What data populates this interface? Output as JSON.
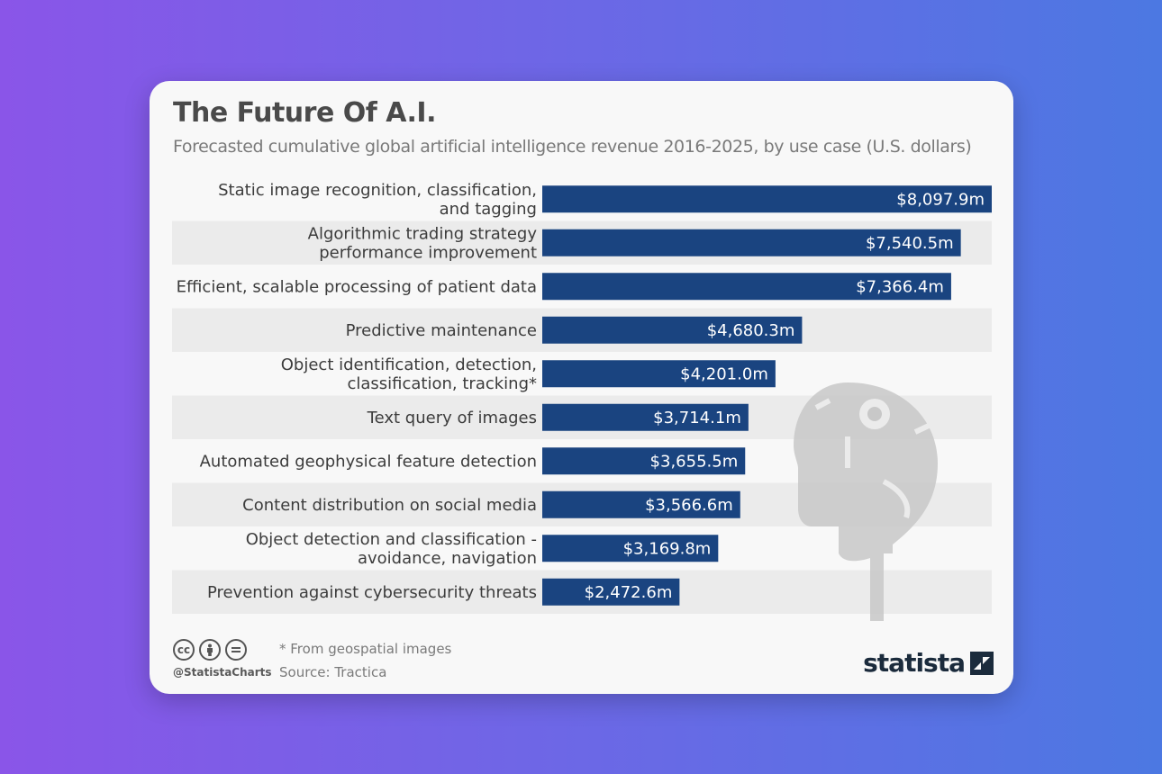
{
  "title": "The Future Of A.I.",
  "subtitle": "Forecasted cumulative global artificial intelligence revenue 2016-2025, by use case (U.S. dollars)",
  "chart_data": {
    "type": "bar",
    "orientation": "horizontal",
    "categories": [
      [
        "Static image recognition, classification,",
        "and tagging"
      ],
      [
        "Algorithmic trading strategy",
        "performance improvement"
      ],
      [
        "Efficient, scalable processing of patient data"
      ],
      [
        "Predictive maintenance"
      ],
      [
        "Object identification, detection,",
        "classification, tracking*"
      ],
      [
        "Text query of images"
      ],
      [
        "Automated geophysical feature detection"
      ],
      [
        "Content distribution on social media"
      ],
      [
        "Object detection and classification -",
        "avoidance, navigation"
      ],
      [
        "Prevention against cybersecurity threats"
      ]
    ],
    "values": [
      8097.9,
      7540.5,
      7366.4,
      4680.3,
      4201.0,
      3714.1,
      3655.5,
      3566.6,
      3169.8,
      2472.6
    ],
    "value_labels": [
      "$8,097.9m",
      "$7,540.5m",
      "$7,366.4m",
      "$4,680.3m",
      "$4,201.0m",
      "$3,714.1m",
      "$3,655.5m",
      "$3,566.6m",
      "$3,169.8m",
      "$2,472.6m"
    ],
    "unit": "U.S. dollars (million)",
    "xlim": [
      0,
      8097.9
    ],
    "bar_color": "#1a4480",
    "stripe_color": "#ebebeb",
    "grid": false
  },
  "footer": {
    "note": "* From geospatial images",
    "source": "Source: Tractica",
    "handle": "@StatistaCharts",
    "cc_icons": [
      "cc",
      "by",
      "nd"
    ],
    "brand": "statista"
  },
  "decor_icon": "robot-head-icon"
}
